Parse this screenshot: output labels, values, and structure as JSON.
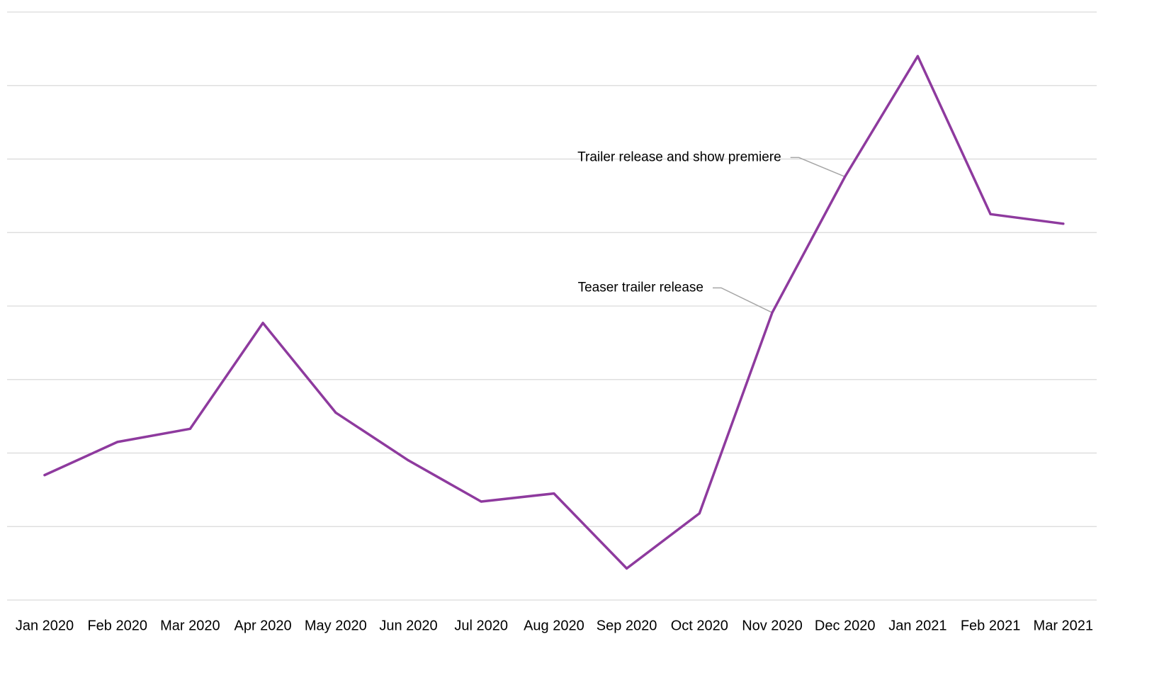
{
  "chart_data": {
    "type": "line",
    "categories": [
      "Jan 2020",
      "Feb 2020",
      "Mar 2020",
      "Apr 2020",
      "May 2020",
      "Jun 2020",
      "Jul 2020",
      "Aug 2020",
      "Sep 2020",
      "Oct 2020",
      "Nov 2020",
      "Dec 2020",
      "Jan 2021",
      "Feb 2021",
      "Mar 2021"
    ],
    "series": [
      {
        "values": [
          17.0,
          21.5,
          23.3,
          37.7,
          25.5,
          19.0,
          13.4,
          14.5,
          4.3,
          11.8,
          39.1,
          57.6,
          74.0,
          52.5,
          51.2
        ]
      }
    ],
    "ylim": [
      0,
      80
    ],
    "y_gridlines": [
      0,
      10,
      20,
      30,
      40,
      50,
      60,
      70,
      80
    ],
    "grid": true,
    "y_tick_labels_shown": false,
    "title": "",
    "xlabel": "",
    "ylabel": "",
    "legend": "none",
    "annotations": [
      {
        "text": "Trailer release and show premiere",
        "category_index": 11
      },
      {
        "text": "Teaser trailer release",
        "category_index": 10
      }
    ],
    "colors": {
      "line": "#8E3A9E",
      "grid": "#D9D9D9",
      "leader": "#A6A6A6",
      "text": "#000000"
    }
  }
}
